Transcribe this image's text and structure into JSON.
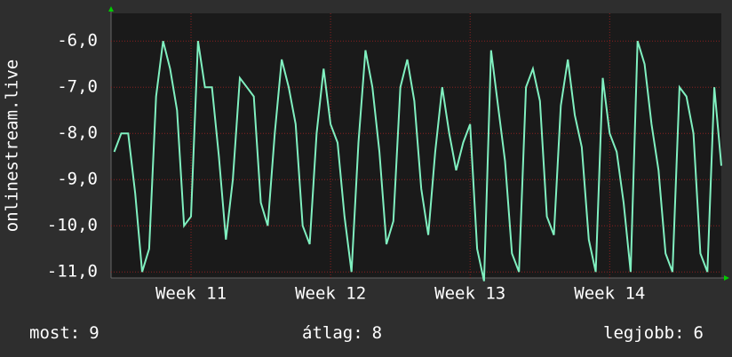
{
  "chart_data": {
    "type": "line",
    "y_label": "onlinestream.live",
    "x": [
      10.45,
      10.5,
      10.55,
      10.6,
      10.65,
      10.7,
      10.75,
      10.8,
      10.85,
      10.9,
      10.95,
      11,
      11.05,
      11.1,
      11.15,
      11.2,
      11.25,
      11.3,
      11.35,
      11.4,
      11.45,
      11.5,
      11.55,
      11.6,
      11.65,
      11.7,
      11.75,
      11.8,
      11.85,
      11.9,
      11.95,
      12,
      12.05,
      12.1,
      12.15,
      12.2,
      12.25,
      12.3,
      12.35,
      12.4,
      12.45,
      12.5,
      12.55,
      12.6,
      12.65,
      12.7,
      12.75,
      12.8,
      12.85,
      12.9,
      12.95,
      13,
      13.05,
      13.1,
      13.15,
      13.2,
      13.25,
      13.3,
      13.35,
      13.4,
      13.45,
      13.5,
      13.55,
      13.6,
      13.65,
      13.7,
      13.75,
      13.8,
      13.85,
      13.9,
      13.95,
      14,
      14.05,
      14.1,
      14.15,
      14.2,
      14.25,
      14.3,
      14.35,
      14.4,
      14.45,
      14.5,
      14.55,
      14.6,
      14.65,
      14.7,
      14.75,
      14.8
    ],
    "series": [
      {
        "color": "#80f0c0",
        "values": [
          -8.4,
          -8,
          -8,
          -9.3,
          -11,
          -10.5,
          -7.2,
          -6,
          -6.6,
          -7.5,
          -10,
          -9.8,
          -6,
          -7,
          -7,
          -8.5,
          -10.3,
          -9,
          -6.8,
          -7,
          -7.2,
          -9.5,
          -10,
          -8,
          -6.4,
          -7,
          -7.8,
          -10,
          -10.4,
          -8,
          -6.6,
          -7.8,
          -8.2,
          -9.8,
          -11,
          -8.2,
          -6.2,
          -7,
          -8.4,
          -10.4,
          -9.9,
          -7,
          -6.4,
          -7.3,
          -9.2,
          -10.2,
          -8.4,
          -7,
          -8,
          -8.8,
          -8.2,
          -7.8,
          -10.5,
          -11.2,
          -6.2,
          -7.4,
          -8.6,
          -10.6,
          -11,
          -7,
          -6.6,
          -7.3,
          -9.8,
          -10.2,
          -7.4,
          -6.4,
          -7.6,
          -8.3,
          -10.3,
          -11,
          -6.8,
          -8,
          -8.4,
          -9.5,
          -11,
          -6,
          -6.5,
          -7.8,
          -8.8,
          -10.6,
          -11,
          -7,
          -7.2,
          -8,
          -10.6,
          -11,
          -7,
          -8.7
        ]
      }
    ],
    "xlim": [
      10.427,
      14.8
    ],
    "xticks": [
      {
        "value": 11,
        "label": "Week 11"
      },
      {
        "value": 12,
        "label": "Week 12"
      },
      {
        "value": 13,
        "label": "Week 13"
      },
      {
        "value": 14,
        "label": "Week 14"
      }
    ],
    "ylim": [
      -11.13,
      -5.4
    ],
    "yticks": [
      {
        "value": -6,
        "label": "-6,0"
      },
      {
        "value": -7,
        "label": "-7,0"
      },
      {
        "value": -8,
        "label": "-8,0"
      },
      {
        "value": -9,
        "label": "-9,0"
      },
      {
        "value": -10,
        "label": "-10,0"
      },
      {
        "value": -11,
        "label": "-11,0"
      }
    ],
    "grid": true,
    "stats": [
      {
        "label": "most:",
        "value": 9
      },
      {
        "label": "átlag:",
        "value": 8
      },
      {
        "label": "legjobb:",
        "value": 6
      }
    ]
  }
}
